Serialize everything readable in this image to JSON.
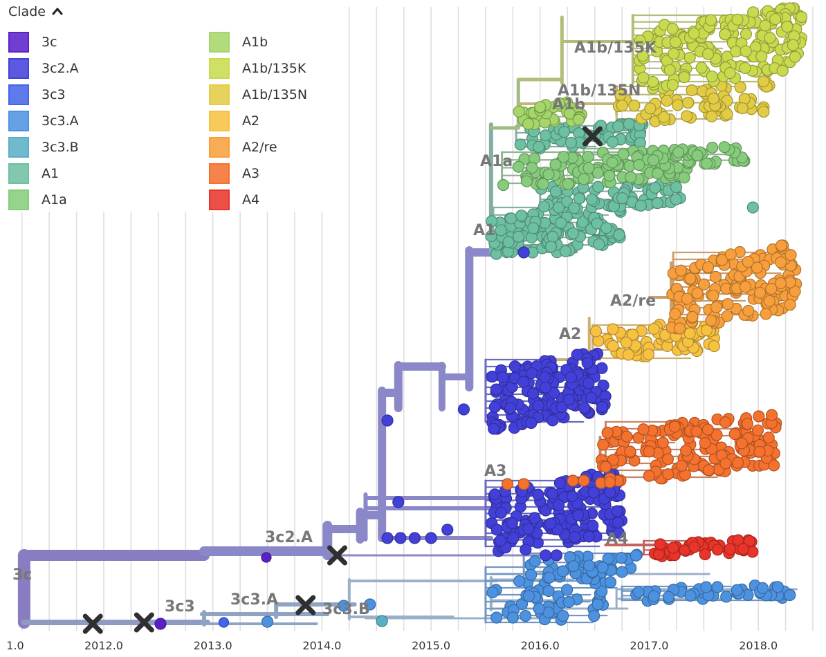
{
  "legend": {
    "title": "Clade",
    "items": [
      {
        "label": "3c",
        "color": "#5B21C9"
      },
      {
        "label": "3c2.A",
        "color": "#4240D8"
      },
      {
        "label": "3c3",
        "color": "#4565E8"
      },
      {
        "label": "3c3.A",
        "color": "#4D92E0"
      },
      {
        "label": "3c3.B",
        "color": "#5AAFC7"
      },
      {
        "label": "A1",
        "color": "#6EC0A2"
      },
      {
        "label": "A1a",
        "color": "#86CC7C"
      },
      {
        "label": "A1b",
        "color": "#A6D66A"
      },
      {
        "label": "A1b/135K",
        "color": "#C9DA4F"
      },
      {
        "label": "A1b/135N",
        "color": "#E2CC45"
      },
      {
        "label": "A2",
        "color": "#F7C142"
      },
      {
        "label": "A2/re",
        "color": "#F79F3C"
      },
      {
        "label": "A3",
        "color": "#F5712E"
      },
      {
        "label": "A4",
        "color": "#E8342A"
      }
    ]
  },
  "chart_data": {
    "type": "scatter",
    "xlabel": "",
    "ylabel": "",
    "x_ticks": [
      "1.0",
      "2012.0",
      "2013.0",
      "2014.0",
      "2015.0",
      "2016.0",
      "2017.0",
      "2018.0"
    ],
    "xlim": [
      2011.25,
      2018.5
    ],
    "grid": true,
    "clade_labels": [
      "3c",
      "3c3",
      "3c3.A",
      "3c3.B",
      "3c2.A",
      "A4",
      "A3",
      "A2",
      "A2/re",
      "A1",
      "A1a",
      "A1b",
      "A1b/135N",
      "A1b/135K"
    ],
    "series": [
      {
        "name": "3c",
        "color": "#5B21C9"
      },
      {
        "name": "3c2.A",
        "color": "#4240D8"
      },
      {
        "name": "3c3",
        "color": "#4565E8"
      },
      {
        "name": "3c3.A",
        "color": "#4D92E0"
      },
      {
        "name": "3c3.B",
        "color": "#5AAFC7"
      },
      {
        "name": "A1",
        "color": "#6EC0A2"
      },
      {
        "name": "A1a",
        "color": "#86CC7C"
      },
      {
        "name": "A1b",
        "color": "#A6D66A"
      },
      {
        "name": "A1b/135K",
        "color": "#C9DA4F"
      },
      {
        "name": "A1b/135N",
        "color": "#E2CC45"
      },
      {
        "name": "A2",
        "color": "#F7C142"
      },
      {
        "name": "A2/re",
        "color": "#F79F3C"
      },
      {
        "name": "A3",
        "color": "#F5712E"
      },
      {
        "name": "A4",
        "color": "#E8342A"
      }
    ]
  }
}
